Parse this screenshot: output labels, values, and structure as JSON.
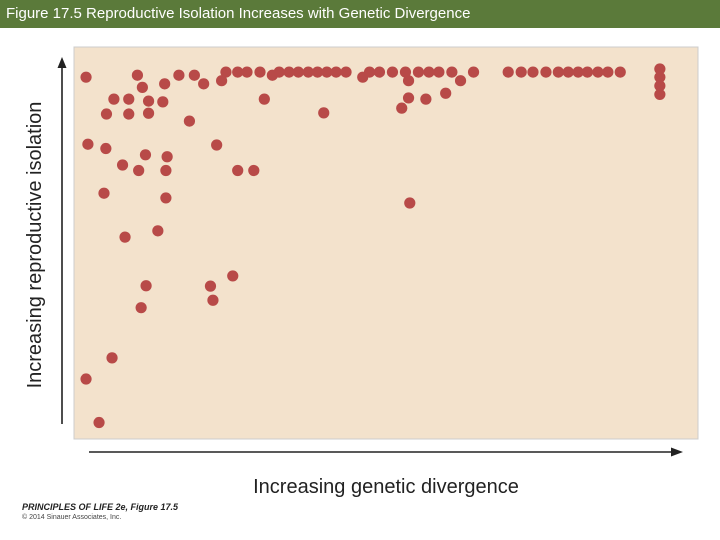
{
  "header": {
    "title": "Figure 17.5  Reproductive Isolation Increases with Genetic Divergence"
  },
  "footer": {
    "book": "PRINCIPLES OF LIFE 2e, Figure 17.5",
    "copyright": "© 2014 Sinauer Associates, Inc."
  },
  "colors": {
    "title_bar": "#5b7a3a",
    "plot_background": "#f3e2cc",
    "point": "#b84a48",
    "axis": "#222222"
  },
  "chart_data": {
    "type": "scatter",
    "xlabel": "Increasing genetic divergence",
    "ylabel": "Increasing reproductive isolation",
    "xlim": [
      0,
      100
    ],
    "ylim": [
      0,
      100
    ],
    "grid": false,
    "legend": "none",
    "points": [
      {
        "x": 1.3,
        "y": 92.3
      },
      {
        "x": 1.6,
        "y": 75.2
      },
      {
        "x": 1.3,
        "y": 15.3
      },
      {
        "x": 3.4,
        "y": 4.2
      },
      {
        "x": 4.2,
        "y": 62.7
      },
      {
        "x": 4.5,
        "y": 74.1
      },
      {
        "x": 4.6,
        "y": 82.9
      },
      {
        "x": 5.5,
        "y": 20.7
      },
      {
        "x": 5.8,
        "y": 86.7
      },
      {
        "x": 7.2,
        "y": 69.9
      },
      {
        "x": 7.6,
        "y": 51.5
      },
      {
        "x": 8.2,
        "y": 82.9
      },
      {
        "x": 8.2,
        "y": 86.7
      },
      {
        "x": 9.6,
        "y": 92.8
      },
      {
        "x": 9.8,
        "y": 68.5
      },
      {
        "x": 10.2,
        "y": 33.5
      },
      {
        "x": 10.4,
        "y": 89.7
      },
      {
        "x": 10.9,
        "y": 72.5
      },
      {
        "x": 11.0,
        "y": 39.1
      },
      {
        "x": 11.4,
        "y": 86.2
      },
      {
        "x": 11.4,
        "y": 83.1
      },
      {
        "x": 12.9,
        "y": 53.1
      },
      {
        "x": 13.7,
        "y": 86.0
      },
      {
        "x": 14.0,
        "y": 90.6
      },
      {
        "x": 14.2,
        "y": 68.5
      },
      {
        "x": 14.2,
        "y": 61.5
      },
      {
        "x": 14.4,
        "y": 72.0
      },
      {
        "x": 16.3,
        "y": 92.8
      },
      {
        "x": 18.0,
        "y": 81.1
      },
      {
        "x": 18.8,
        "y": 92.8
      },
      {
        "x": 20.3,
        "y": 90.6
      },
      {
        "x": 21.4,
        "y": 39.0
      },
      {
        "x": 21.8,
        "y": 35.4
      },
      {
        "x": 22.4,
        "y": 75.0
      },
      {
        "x": 23.2,
        "y": 91.4
      },
      {
        "x": 23.9,
        "y": 93.6
      },
      {
        "x": 25.0,
        "y": 41.6
      },
      {
        "x": 25.8,
        "y": 68.5
      },
      {
        "x": 25.8,
        "y": 93.6
      },
      {
        "x": 27.3,
        "y": 93.6
      },
      {
        "x": 28.4,
        "y": 68.5
      },
      {
        "x": 29.4,
        "y": 93.6
      },
      {
        "x": 30.1,
        "y": 86.7
      },
      {
        "x": 31.4,
        "y": 92.8
      },
      {
        "x": 32.5,
        "y": 93.6
      },
      {
        "x": 34.1,
        "y": 93.6
      },
      {
        "x": 35.6,
        "y": 93.6
      },
      {
        "x": 37.2,
        "y": 93.6
      },
      {
        "x": 38.7,
        "y": 93.6
      },
      {
        "x": 39.7,
        "y": 83.2
      },
      {
        "x": 40.2,
        "y": 93.6
      },
      {
        "x": 41.7,
        "y": 93.6
      },
      {
        "x": 43.3,
        "y": 93.6
      },
      {
        "x": 46.0,
        "y": 92.3
      },
      {
        "x": 47.1,
        "y": 93.6
      },
      {
        "x": 48.7,
        "y": 93.6
      },
      {
        "x": 50.8,
        "y": 93.6
      },
      {
        "x": 52.3,
        "y": 84.4
      },
      {
        "x": 52.9,
        "y": 93.6
      },
      {
        "x": 53.4,
        "y": 91.4
      },
      {
        "x": 53.4,
        "y": 87.0
      },
      {
        "x": 53.6,
        "y": 60.2
      },
      {
        "x": 55.0,
        "y": 93.6
      },
      {
        "x": 56.2,
        "y": 86.7
      },
      {
        "x": 56.7,
        "y": 93.6
      },
      {
        "x": 58.3,
        "y": 93.6
      },
      {
        "x": 59.4,
        "y": 88.2
      },
      {
        "x": 60.4,
        "y": 93.6
      },
      {
        "x": 61.8,
        "y": 91.4
      },
      {
        "x": 63.9,
        "y": 93.6
      },
      {
        "x": 69.5,
        "y": 93.6
      },
      {
        "x": 71.6,
        "y": 93.6
      },
      {
        "x": 73.5,
        "y": 93.6
      },
      {
        "x": 75.6,
        "y": 93.6
      },
      {
        "x": 77.6,
        "y": 93.6
      },
      {
        "x": 79.2,
        "y": 93.6
      },
      {
        "x": 80.8,
        "y": 93.6
      },
      {
        "x": 82.3,
        "y": 93.6
      },
      {
        "x": 84.0,
        "y": 93.6
      },
      {
        "x": 85.6,
        "y": 93.6
      },
      {
        "x": 87.6,
        "y": 93.6
      },
      {
        "x": 94.0,
        "y": 94.4
      },
      {
        "x": 94.0,
        "y": 92.3
      },
      {
        "x": 94.0,
        "y": 90.1
      },
      {
        "x": 94.0,
        "y": 87.9
      }
    ]
  }
}
